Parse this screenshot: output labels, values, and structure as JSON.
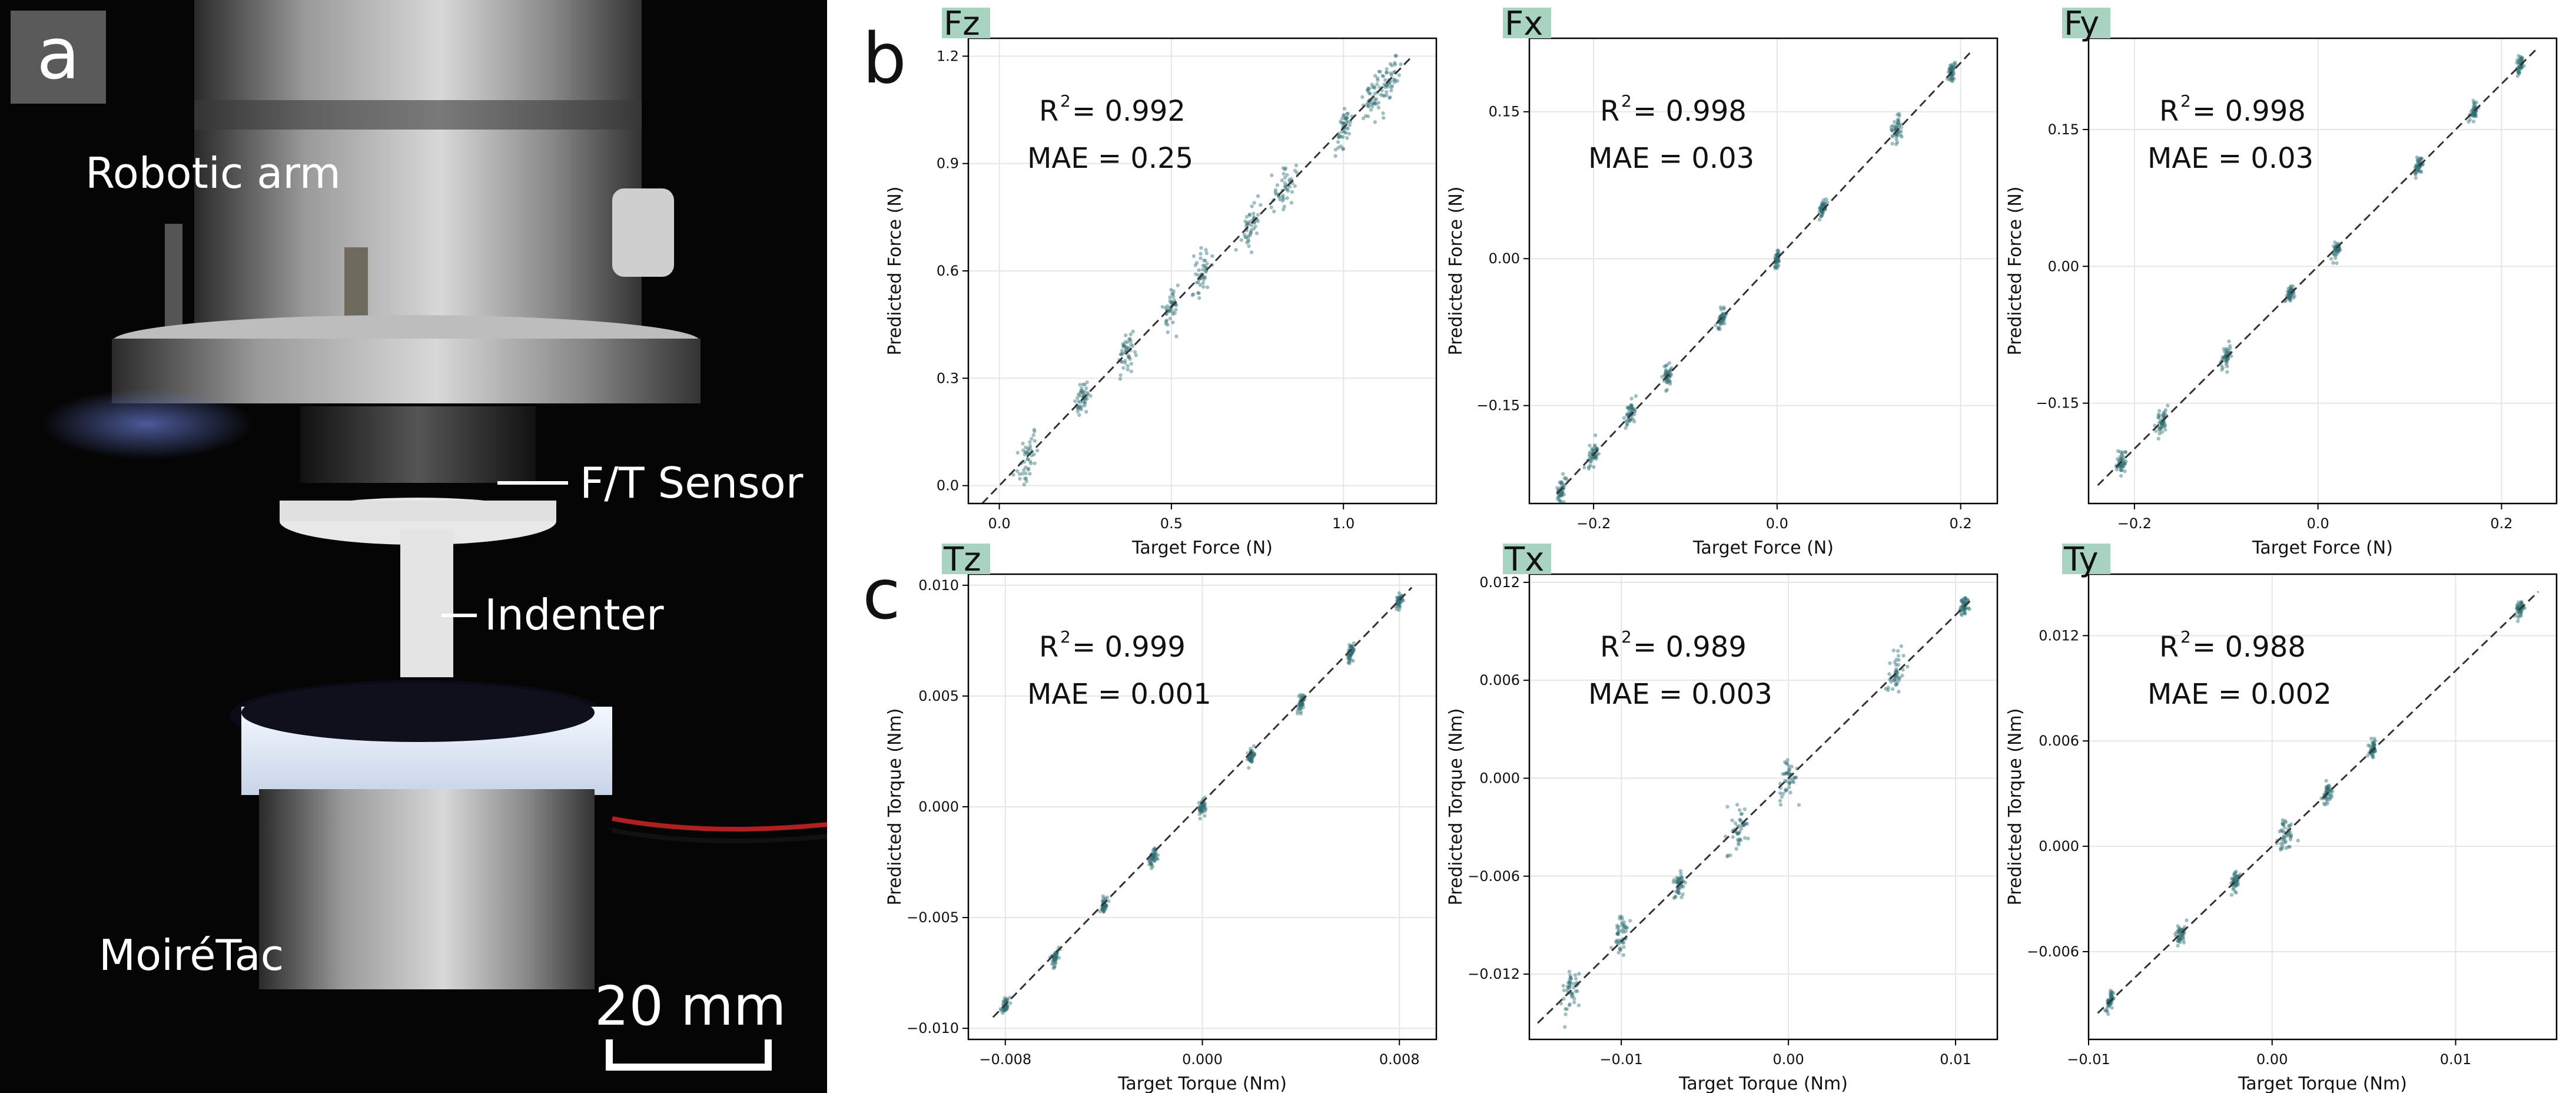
{
  "panel_a": {
    "letter": "a",
    "labels": {
      "robotic_arm": "Robotic arm",
      "ft_sensor": "F/T Sensor",
      "indenter": "Indenter",
      "sensor_name": "MoiréTac",
      "scale_bar": "20 mm"
    }
  },
  "panel_letters": {
    "b": "b",
    "c": "c"
  },
  "colors": {
    "points": "#2f6f73",
    "title_bg": "#a9d3c1",
    "grid": "#e6e6e6"
  },
  "chart_data": [
    {
      "type": "scatter",
      "title": "Fz",
      "xlabel": "Target Force (N)",
      "ylabel": "Predicted Force (N)",
      "xlim": [
        -0.09,
        1.27
      ],
      "ylim": [
        -0.05,
        1.25
      ],
      "xticks": [
        0.0,
        0.5,
        1.0
      ],
      "xtick_labels": [
        "0.0",
        "0.5",
        "1.0"
      ],
      "yticks": [
        0.0,
        0.3,
        0.6,
        0.9,
        1.2
      ],
      "ytick_labels": [
        "0.0",
        "0.3",
        "0.6",
        "0.9",
        "1.2"
      ],
      "r2_label": "R",
      "r2_value": "= 0.992",
      "mae": "MAE = 0.25",
      "identity_line": [
        [
          -0.05,
          -0.05
        ],
        [
          1.2,
          1.2
        ]
      ],
      "clusters": [
        {
          "x": 0.08,
          "y": 0.08,
          "spread": 0.06
        },
        {
          "x": 0.24,
          "y": 0.24,
          "spread": 0.04
        },
        {
          "x": 0.37,
          "y": 0.37,
          "spread": 0.05
        },
        {
          "x": 0.5,
          "y": 0.5,
          "spread": 0.05
        },
        {
          "x": 0.59,
          "y": 0.59,
          "spread": 0.05
        },
        {
          "x": 0.73,
          "y": 0.73,
          "spread": 0.05
        },
        {
          "x": 0.83,
          "y": 0.83,
          "spread": 0.06
        },
        {
          "x": 1.0,
          "y": 1.0,
          "spread": 0.05
        },
        {
          "x": 1.08,
          "y": 1.08,
          "spread": 0.06
        },
        {
          "x": 1.13,
          "y": 1.13,
          "spread": 0.06
        }
      ]
    },
    {
      "type": "scatter",
      "title": "Fx",
      "xlabel": "Target Force (N)",
      "ylabel": "Predicted Force (N)",
      "xlim": [
        -0.27,
        0.24
      ],
      "ylim": [
        -0.25,
        0.225
      ],
      "xticks": [
        -0.2,
        0.0,
        0.2
      ],
      "xtick_labels": [
        "−0.2",
        "0.0",
        "0.2"
      ],
      "yticks": [
        -0.15,
        0.0,
        0.15
      ],
      "ytick_labels": [
        "−0.15",
        "0.00",
        "0.15"
      ],
      "r2_label": "R",
      "r2_value": "= 0.998",
      "mae": "MAE = 0.03",
      "identity_line": [
        [
          -0.24,
          -0.24
        ],
        [
          0.21,
          0.21
        ]
      ],
      "clusters": [
        {
          "x": -0.235,
          "y": -0.235,
          "spread": 0.01
        },
        {
          "x": -0.2,
          "y": -0.2,
          "spread": 0.01
        },
        {
          "x": -0.16,
          "y": -0.16,
          "spread": 0.012
        },
        {
          "x": -0.12,
          "y": -0.12,
          "spread": 0.012
        },
        {
          "x": -0.06,
          "y": -0.06,
          "spread": 0.01
        },
        {
          "x": 0.0,
          "y": 0.0,
          "spread": 0.006
        },
        {
          "x": 0.05,
          "y": 0.05,
          "spread": 0.008
        },
        {
          "x": 0.13,
          "y": 0.13,
          "spread": 0.012
        },
        {
          "x": 0.19,
          "y": 0.19,
          "spread": 0.008
        }
      ]
    },
    {
      "type": "scatter",
      "title": "Fy",
      "xlabel": "Target Force (N)",
      "ylabel": "Predicted Force (N)",
      "xlim": [
        -0.25,
        0.26
      ],
      "ylim": [
        -0.26,
        0.25
      ],
      "xticks": [
        -0.2,
        0.0,
        0.2
      ],
      "xtick_labels": [
        "−0.2",
        "0.0",
        "0.2"
      ],
      "yticks": [
        -0.15,
        0.0,
        0.15
      ],
      "ytick_labels": [
        "−0.15",
        "0.00",
        "0.15"
      ],
      "r2_label": "R",
      "r2_value": "= 0.998",
      "mae": "MAE = 0.03",
      "identity_line": [
        [
          -0.24,
          -0.24
        ],
        [
          0.24,
          0.24
        ]
      ],
      "clusters": [
        {
          "x": -0.215,
          "y": -0.215,
          "spread": 0.012
        },
        {
          "x": -0.17,
          "y": -0.17,
          "spread": 0.012
        },
        {
          "x": -0.1,
          "y": -0.1,
          "spread": 0.01
        },
        {
          "x": -0.03,
          "y": -0.03,
          "spread": 0.008
        },
        {
          "x": 0.02,
          "y": 0.02,
          "spread": 0.008
        },
        {
          "x": 0.11,
          "y": 0.11,
          "spread": 0.008
        },
        {
          "x": 0.17,
          "y": 0.17,
          "spread": 0.008
        },
        {
          "x": 0.22,
          "y": 0.22,
          "spread": 0.008
        }
      ]
    },
    {
      "type": "scatter",
      "title": "Tz",
      "xlabel": "Target Torque (Nm)",
      "ylabel": "Predicted Torque (Nm)",
      "xlim": [
        -0.0095,
        0.0095
      ],
      "ylim": [
        -0.0105,
        0.0105
      ],
      "xticks": [
        -0.008,
        0.0,
        0.008
      ],
      "xtick_labels": [
        "−0.008",
        "0.000",
        "0.008"
      ],
      "yticks": [
        -0.01,
        -0.005,
        0.0,
        0.005,
        0.01
      ],
      "ytick_labels": [
        "−0.010",
        "−0.005",
        "0.000",
        "0.005",
        "0.010"
      ],
      "r2_label": "R",
      "r2_value": "= 0.999",
      "mae": "MAE = 0.001",
      "identity_line": [
        [
          -0.0085,
          -0.0095
        ],
        [
          0.0085,
          0.0099
        ]
      ],
      "clusters": [
        {
          "x": -0.008,
          "y": -0.009,
          "spread": 0.0003
        },
        {
          "x": -0.006,
          "y": -0.0068,
          "spread": 0.0003
        },
        {
          "x": -0.004,
          "y": -0.0045,
          "spread": 0.0003
        },
        {
          "x": -0.002,
          "y": -0.0023,
          "spread": 0.0003
        },
        {
          "x": 0.0,
          "y": 0.0,
          "spread": 0.0003
        },
        {
          "x": 0.002,
          "y": 0.0023,
          "spread": 0.0003
        },
        {
          "x": 0.004,
          "y": 0.0046,
          "spread": 0.0003
        },
        {
          "x": 0.006,
          "y": 0.0069,
          "spread": 0.0003
        },
        {
          "x": 0.008,
          "y": 0.0093,
          "spread": 0.0003
        }
      ]
    },
    {
      "type": "scatter",
      "title": "Tx",
      "xlabel": "Target Torque (Nm)",
      "ylabel": "Predicted Torque (Nm)",
      "xlim": [
        -0.0155,
        0.0125
      ],
      "ylim": [
        -0.016,
        0.0125
      ],
      "xticks": [
        -0.01,
        0.0,
        0.01
      ],
      "xtick_labels": [
        "−0.01",
        "0.00",
        "0.01"
      ],
      "yticks": [
        -0.012,
        -0.006,
        0.0,
        0.006,
        0.012
      ],
      "ytick_labels": [
        "−0.012",
        "−0.006",
        "0.000",
        "0.006",
        "0.012"
      ],
      "r2_label": "R",
      "r2_value": "= 0.989",
      "mae": "MAE = 0.003",
      "identity_line": [
        [
          -0.015,
          -0.015
        ],
        [
          0.011,
          0.011
        ]
      ],
      "clusters": [
        {
          "x": -0.013,
          "y": -0.013,
          "spread": 0.001
        },
        {
          "x": -0.01,
          "y": -0.0095,
          "spread": 0.001
        },
        {
          "x": -0.0065,
          "y": -0.0065,
          "spread": 0.0008
        },
        {
          "x": -0.003,
          "y": -0.003,
          "spread": 0.0012
        },
        {
          "x": 0.0,
          "y": 0.0,
          "spread": 0.0012
        },
        {
          "x": 0.0065,
          "y": 0.0065,
          "spread": 0.001
        },
        {
          "x": 0.0105,
          "y": 0.0105,
          "spread": 0.0006
        }
      ]
    },
    {
      "type": "scatter",
      "title": "Ty",
      "xlabel": "Target Torque (Nm)",
      "ylabel": "Predicted Torque (Nm)",
      "xlim": [
        -0.01,
        0.0155
      ],
      "ylim": [
        -0.011,
        0.0155
      ],
      "xticks": [
        -0.01,
        0.0,
        0.01
      ],
      "xtick_labels": [
        "−0.01",
        "0.00",
        "0.01"
      ],
      "yticks": [
        -0.006,
        0.0,
        0.006,
        0.012
      ],
      "ytick_labels": [
        "−0.006",
        "0.000",
        "0.006",
        "0.012"
      ],
      "r2_label": "R",
      "r2_value": "= 0.988",
      "mae": "MAE = 0.002",
      "identity_line": [
        [
          -0.0095,
          -0.0095
        ],
        [
          0.0145,
          0.0145
        ]
      ],
      "clusters": [
        {
          "x": -0.0088,
          "y": -0.0088,
          "spread": 0.0004
        },
        {
          "x": -0.005,
          "y": -0.005,
          "spread": 0.0005
        },
        {
          "x": -0.002,
          "y": -0.002,
          "spread": 0.0005
        },
        {
          "x": 0.0007,
          "y": 0.0005,
          "spread": 0.0008
        },
        {
          "x": 0.003,
          "y": 0.003,
          "spread": 0.0005
        },
        {
          "x": 0.0055,
          "y": 0.0055,
          "spread": 0.0004
        },
        {
          "x": 0.0135,
          "y": 0.0135,
          "spread": 0.0005
        }
      ]
    }
  ]
}
